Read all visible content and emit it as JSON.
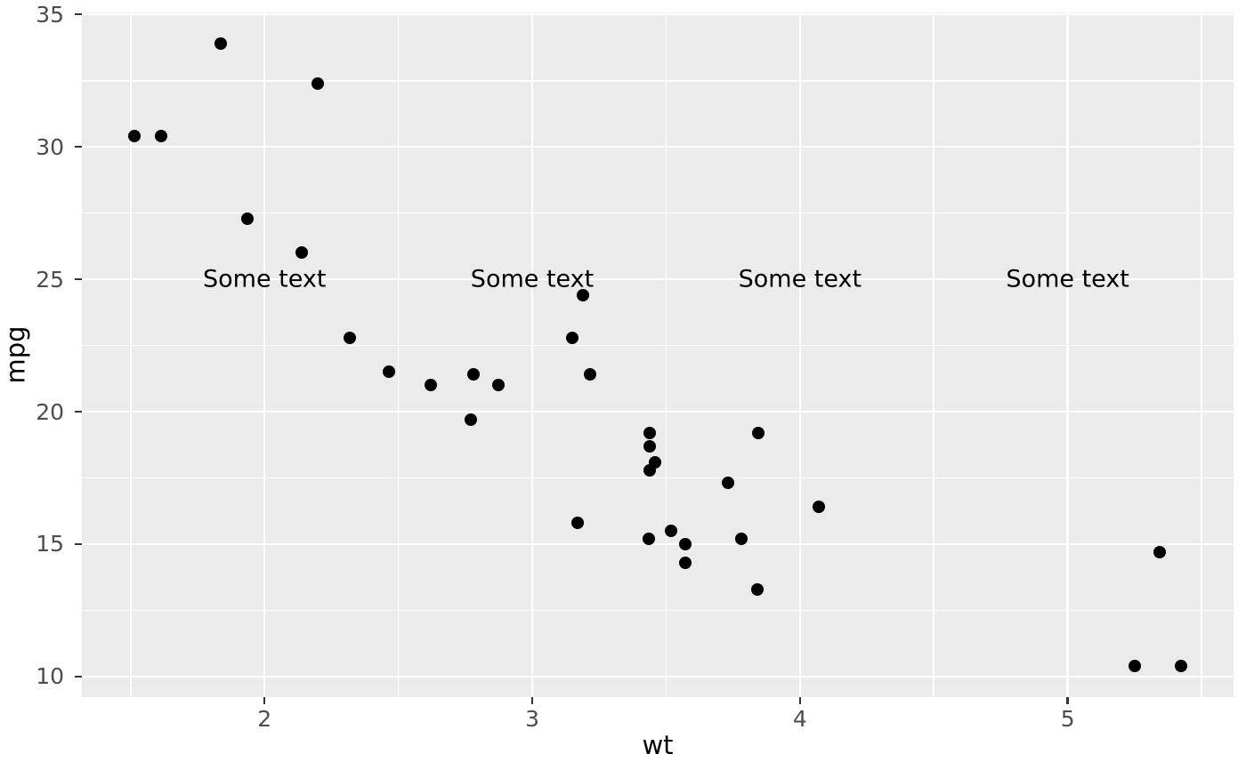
{
  "style": {
    "outer_bg": "#FFFFFF",
    "panel_bg": "#EBEBEB",
    "grid_color": "#FFFFFF",
    "point_color": "#000000",
    "tick_label_color": "#4D4D4D",
    "tick_mark_color": "#333333",
    "axis_title_color": "#000000",
    "annotation_color": "#000000"
  },
  "chart_data": {
    "type": "scatter",
    "title": "",
    "xlabel": "wt",
    "ylabel": "mpg",
    "xlim": [
      1.3177,
      5.6195
    ],
    "ylim": [
      9.225,
      35.075
    ],
    "x_major_ticks": [
      2,
      3,
      4,
      5
    ],
    "y_major_ticks": [
      10,
      15,
      20,
      25,
      30,
      35
    ],
    "x_minor_gridlines": [
      1.5,
      2.5,
      3.5,
      4.5,
      5.5
    ],
    "y_minor_gridlines": [
      12.5,
      17.5,
      22.5,
      27.5,
      32.5
    ],
    "grid": "on",
    "legend": "none",
    "points": [
      [
        2.62,
        21.0
      ],
      [
        2.875,
        21.0
      ],
      [
        2.32,
        22.8
      ],
      [
        3.215,
        21.4
      ],
      [
        3.44,
        18.7
      ],
      [
        3.46,
        18.1
      ],
      [
        3.57,
        14.3
      ],
      [
        3.19,
        24.4
      ],
      [
        3.15,
        22.8
      ],
      [
        3.44,
        19.2
      ],
      [
        3.44,
        17.8
      ],
      [
        4.07,
        16.4
      ],
      [
        3.73,
        17.3
      ],
      [
        3.78,
        15.2
      ],
      [
        5.25,
        10.4
      ],
      [
        5.424,
        10.4
      ],
      [
        5.345,
        14.7
      ],
      [
        2.2,
        32.4
      ],
      [
        1.615,
        30.4
      ],
      [
        1.835,
        33.9
      ],
      [
        2.465,
        21.5
      ],
      [
        3.52,
        15.5
      ],
      [
        3.435,
        15.2
      ],
      [
        3.84,
        13.3
      ],
      [
        3.845,
        19.2
      ],
      [
        1.935,
        27.3
      ],
      [
        2.14,
        26.0
      ],
      [
        1.513,
        30.4
      ],
      [
        3.17,
        15.8
      ],
      [
        2.77,
        19.7
      ],
      [
        3.57,
        15.0
      ],
      [
        2.78,
        21.4
      ]
    ],
    "annotations": [
      {
        "x": 2,
        "y": 25,
        "label": "Some text"
      },
      {
        "x": 3,
        "y": 25,
        "label": "Some text"
      },
      {
        "x": 4,
        "y": 25,
        "label": "Some text"
      },
      {
        "x": 5,
        "y": 25,
        "label": "Some text"
      }
    ]
  }
}
